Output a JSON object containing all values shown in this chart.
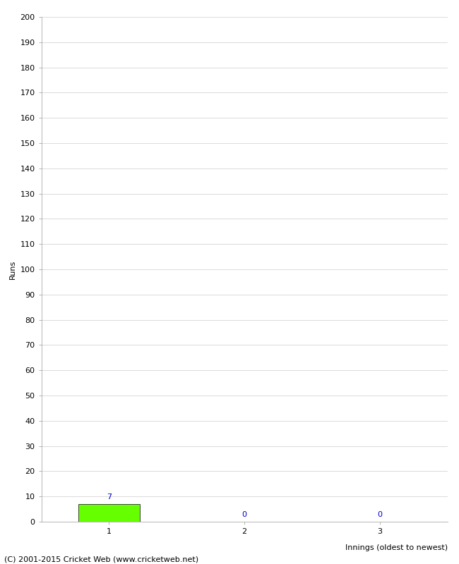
{
  "title": "",
  "xlabel": "Innings (oldest to newest)",
  "ylabel": "Runs",
  "categories": [
    1,
    2,
    3
  ],
  "values": [
    7,
    0,
    0
  ],
  "bar_color": "#66ff00",
  "bar_edge_color": "#000000",
  "value_labels": [
    "7",
    "0",
    "0"
  ],
  "value_label_color": "#0000cc",
  "ylim": [
    0,
    200
  ],
  "ytick_step": 10,
  "background_color": "#ffffff",
  "footer_text": "(C) 2001-2015 Cricket Web (www.cricketweb.net)",
  "xlabel_fontsize": 8,
  "ylabel_fontsize": 8,
  "tick_fontsize": 8,
  "footer_fontsize": 8,
  "value_label_fontsize": 8,
  "bar_width": 0.45
}
